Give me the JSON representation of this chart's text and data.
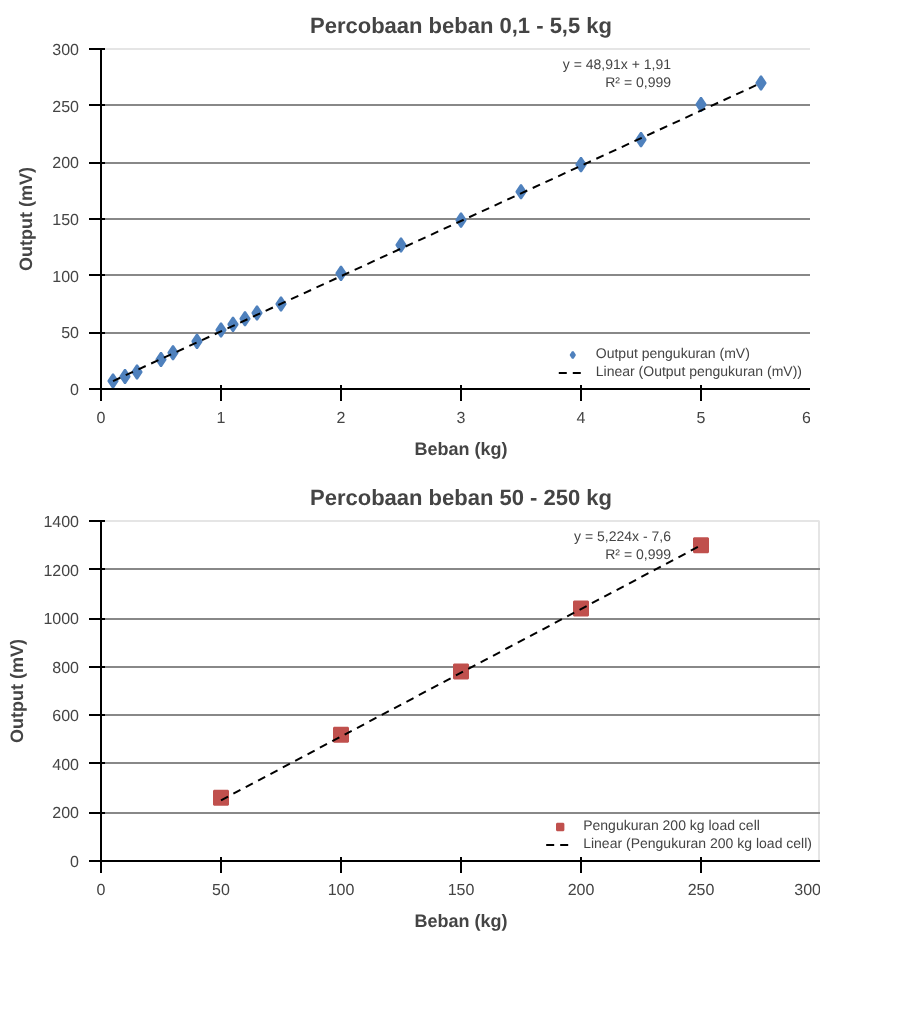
{
  "chart_data": [
    {
      "type": "scatter",
      "title": "Percobaan beban 0,1 - 5,5 kg",
      "xlabel": "Beban (kg)",
      "ylabel": "Output (mV)",
      "xlim": [
        0,
        6
      ],
      "xticks": [
        0,
        1,
        2,
        3,
        4,
        5,
        6
      ],
      "ylim": [
        0,
        300
      ],
      "yticks": [
        0,
        50,
        100,
        150,
        200,
        250,
        300
      ],
      "grid": "y",
      "legend": "bottom right",
      "annotations": [
        "y = 48,91x + 1,91",
        "R² = 0,999"
      ],
      "series": [
        {
          "name": "Output pengukuran (mV)",
          "color": "#4f81bd",
          "type": "scatter",
          "marker": "diamond",
          "x": [
            0.1,
            0.2,
            0.3,
            0.5,
            0.6,
            0.8,
            1.0,
            1.1,
            1.2,
            1.3,
            1.5,
            2.0,
            2.5,
            3.0,
            3.5,
            4.0,
            4.5,
            5.0,
            5.5
          ],
          "values": [
            7,
            11,
            15,
            26,
            32,
            42,
            52,
            57,
            62,
            67,
            75,
            102,
            127,
            149,
            174,
            198,
            220,
            251,
            270
          ]
        },
        {
          "name": "Linear (Output pengukuran (mV))",
          "color": "#000000",
          "type": "line",
          "line_style": "dashed",
          "x": [
            0.1,
            5.5
          ],
          "values": [
            7,
            270
          ]
        }
      ]
    },
    {
      "type": "scatter",
      "title": "Percobaan beban 50 - 250 kg",
      "xlabel": "Beban (kg)",
      "ylabel": "Output (mV)",
      "xlim": [
        0,
        300
      ],
      "xticks": [
        0,
        50,
        100,
        150,
        200,
        250,
        300
      ],
      "ylim": [
        0,
        1400
      ],
      "yticks": [
        0,
        200,
        400,
        600,
        800,
        1000,
        1200,
        1400
      ],
      "grid": "y",
      "legend": "bottom right",
      "annotations": [
        "y = 5,224x - 7,6",
        "R² = 0,999"
      ],
      "series": [
        {
          "name": "Pengukuran 200 kg load cell",
          "color": "#c0504d",
          "type": "scatter",
          "marker": "square",
          "x": [
            50,
            100,
            150,
            200,
            250
          ],
          "values": [
            260,
            520,
            780,
            1040,
            1300
          ]
        },
        {
          "name": "Linear (Pengukuran 200 kg load cell)",
          "color": "#000000",
          "type": "line",
          "line_style": "dashed",
          "x": [
            50,
            250
          ],
          "values": [
            250,
            1300
          ]
        }
      ]
    }
  ]
}
